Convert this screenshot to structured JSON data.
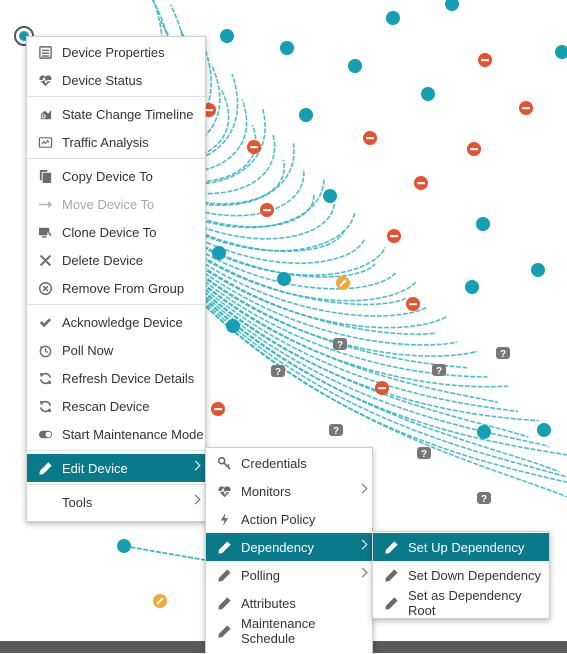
{
  "main_menu": {
    "items": [
      {
        "label": "Device Properties",
        "icon": "list-icon"
      },
      {
        "label": "Device Status",
        "icon": "heartbeat-icon"
      },
      {
        "label": "State Change Timeline",
        "icon": "timeline-icon"
      },
      {
        "label": "Traffic Analysis",
        "icon": "traffic-icon"
      },
      {
        "label": "Copy Device To",
        "icon": "copy-icon"
      },
      {
        "label": "Move Device To",
        "icon": "arrow-right-icon",
        "disabled": true
      },
      {
        "label": "Clone Device To",
        "icon": "clone-icon"
      },
      {
        "label": "Delete Device",
        "icon": "x-icon"
      },
      {
        "label": "Remove From Group",
        "icon": "remove-circle-icon"
      },
      {
        "label": "Acknowledge Device",
        "icon": "check-icon"
      },
      {
        "label": "Poll Now",
        "icon": "timer-icon"
      },
      {
        "label": "Refresh Device Details",
        "icon": "refresh-icon"
      },
      {
        "label": "Rescan Device",
        "icon": "refresh-icon"
      },
      {
        "label": "Start Maintenance Mode",
        "icon": "toggle-icon"
      },
      {
        "label": "Edit Device",
        "icon": "pencil-icon",
        "active": true,
        "submenu": true
      },
      {
        "label": "Tools",
        "icon": "",
        "submenu": true
      }
    ]
  },
  "edit_submenu": {
    "items": [
      {
        "label": "Credentials",
        "icon": "key-icon"
      },
      {
        "label": "Monitors",
        "icon": "heartbeat-icon",
        "submenu": true
      },
      {
        "label": "Action Policy",
        "icon": "lightning-icon"
      },
      {
        "label": "Dependency",
        "icon": "pencil-icon",
        "active": true,
        "submenu": true
      },
      {
        "label": "Polling",
        "icon": "pencil-icon",
        "submenu": true
      },
      {
        "label": "Attributes",
        "icon": "pencil-icon"
      },
      {
        "label": "Maintenance Schedule",
        "icon": "pencil-icon"
      }
    ]
  },
  "dependency_submenu": {
    "items": [
      {
        "label": "Set Up Dependency",
        "icon": "pencil-icon",
        "active": true
      },
      {
        "label": "Set Down Dependency",
        "icon": "pencil-icon"
      },
      {
        "label": "Set as Dependency Root",
        "icon": "pencil-icon"
      }
    ]
  },
  "colors": {
    "accent": "#0a7a8a",
    "link_line": "#2fb3c2",
    "node": "#14a0b2",
    "status_down": "#e8512f",
    "status_unknown": "#777777",
    "status_maintenance": "#f2a93b",
    "status_bar": "#5a5a5a"
  }
}
